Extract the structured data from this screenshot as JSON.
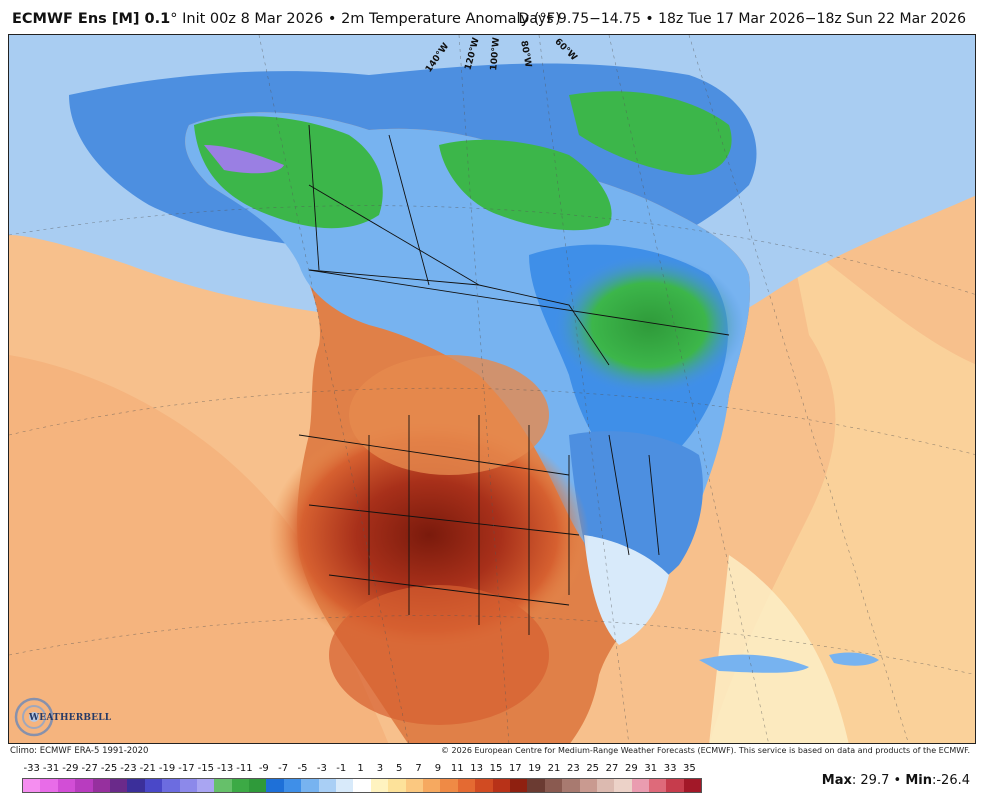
{
  "header": {
    "model": "ECMWF Ens [M] 0.1",
    "degree": "°",
    "init": "Init 00z 8 Mar 2026",
    "bullet": "•",
    "variable": "2m Temperature Anomaly (°F)",
    "valid": "Days 9.75−14.75 • 18z Tue 17 Mar 2026−18z Sun 22 Mar 2026"
  },
  "map": {
    "longitude_labels": [
      "140°W",
      "120°W",
      "100°W",
      "80°W",
      "60°W"
    ],
    "colors": {
      "ocean_warm": "#f7bf87",
      "ocean_light": "#fbe1a8",
      "warm_hot": "#b8341a",
      "warm_dark": "#8a1f10",
      "warm_mid": "#e07a3e",
      "cold_blue": "#4d8fe0",
      "cold_lightblue": "#a9cdf2",
      "cold_green": "#3cb64a",
      "cold_purple": "#9a7fe3",
      "borders": "#111111"
    }
  },
  "logo": {
    "text": "WEATHERBELL"
  },
  "footer": {
    "climo": "Climo: ECMWF ERA-5 1991-2020",
    "copyright": "© 2026 European Centre for Medium-Range Weather Forecasts (ECMWF). This service is based on data and products of the ECMWF."
  },
  "scale": {
    "labels": [
      "-33",
      "-31",
      "-29",
      "-27",
      "-25",
      "-23",
      "-21",
      "-19",
      "-17",
      "-15",
      "-13",
      "-11",
      "-9",
      "-7",
      "-5",
      "-3",
      "-1",
      "1",
      "3",
      "5",
      "7",
      "9",
      "11",
      "13",
      "15",
      "17",
      "19",
      "21",
      "23",
      "25",
      "27",
      "29",
      "31",
      "33",
      "35"
    ],
    "colors": [
      "#f58ef0",
      "#e86ce8",
      "#d24ed6",
      "#b83cbf",
      "#96309e",
      "#6a2a8a",
      "#3b2f9a",
      "#4a48c8",
      "#6c6ce0",
      "#8c89ea",
      "#a9a5f2",
      "#66c06a",
      "#3caa45",
      "#2f9a3a",
      "#1e70d8",
      "#3f8fe8",
      "#77b3f0",
      "#a9cff5",
      "#d8eafa",
      "#ffffff",
      "#fff3c0",
      "#fde29a",
      "#fbc880",
      "#f6a960",
      "#ef8a45",
      "#e46a32",
      "#d14b22",
      "#b83218",
      "#8f2010",
      "#6b3b32",
      "#8a5a50",
      "#a87a70",
      "#c99a90",
      "#dcbab0",
      "#ecd2c8",
      "#ea9cb0",
      "#de6a7a",
      "#c63c4c",
      "#a21828"
    ]
  },
  "stats": {
    "max_label": "Max",
    "max_value": "29.7",
    "sep": "•",
    "min_label": "Min",
    "min_value": "-26.4"
  }
}
